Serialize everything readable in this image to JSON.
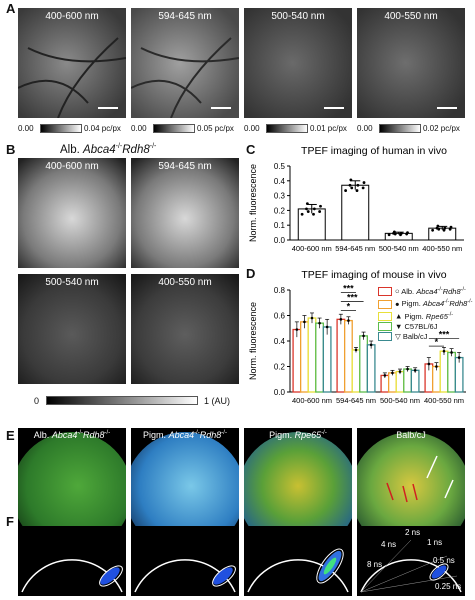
{
  "panels": {
    "A": {
      "label": "A",
      "images": [
        {
          "caption": "400-600 nm",
          "cb_min": "0.00",
          "cb_max": "0.04 pc/px"
        },
        {
          "caption": "594-645 nm",
          "cb_min": "0.00",
          "cb_max": "0.05 pc/px"
        },
        {
          "caption": "500-540 nm",
          "cb_min": "0.00",
          "cb_max": "0.01 pc/px"
        },
        {
          "caption": "400-550 nm",
          "cb_min": "0.00",
          "cb_max": "0.02 pc/px"
        }
      ]
    },
    "B": {
      "label": "B",
      "title_prefix": "Alb.",
      "title_genotype": "Abca4",
      "title_sup1": "-/-",
      "title_gene2": "Rdh8",
      "title_sup2": "-/-",
      "captions": [
        "400-600 nm",
        "594-645 nm",
        "500-540 nm",
        "400-550 nm"
      ],
      "cb_min": "0",
      "cb_max": "1 (AU)"
    },
    "C": {
      "label": "C"
    },
    "D": {
      "label": "D"
    },
    "E": {
      "label": "E",
      "captions": [
        {
          "pre": "Alb.",
          "g1": "Abca4",
          "s1": "-/-",
          "g2": "Rdh8",
          "s2": "-/-"
        },
        {
          "pre": "Pigm.",
          "g1": "Abca4",
          "s1": "-/-",
          "g2": "Rdh8",
          "s2": "-/-"
        },
        {
          "pre": "Pigm.",
          "g1": "Rpe65",
          "s1": "-/-",
          "g2": "",
          "s2": ""
        },
        {
          "pre": "Balb/cJ",
          "g1": "",
          "s1": "",
          "g2": "",
          "s2": ""
        }
      ]
    },
    "F": {
      "label": "F",
      "ns_labels": [
        "2 ns",
        "1 ns",
        "4 ns",
        "0.5 ns",
        "8 ns",
        "0.25 ns"
      ]
    }
  },
  "legend_D": [
    {
      "marker": "○",
      "name": "Alb. Abca4-/-Rdh8-/-",
      "pre": "Alb.",
      "g1": "Abca4",
      "s1": "-/-",
      "g2": "Rdh8",
      "s2": "-/-",
      "color": "#d9352b"
    },
    {
      "marker": "●",
      "name": "Pigm. Abca4-/-Rdh8-/-",
      "pre": "Pigm.",
      "g1": "Abca4",
      "s1": "-/-",
      "g2": "Rdh8",
      "s2": "-/-",
      "color": "#f0a030"
    },
    {
      "marker": "▲",
      "name": "Pigm. Rpe65-/-",
      "pre": "Pigm.",
      "g1": "Rpe65",
      "s1": "-/-",
      "g2": "",
      "s2": "",
      "color": "#e8e03a"
    },
    {
      "marker": "▼",
      "name": "C57BL/6J",
      "pre": "C57BL/6J",
      "g1": "",
      "s1": "",
      "g2": "",
      "s2": "",
      "color": "#5cbc4c"
    },
    {
      "marker": "▽",
      "name": "Balb/cJ",
      "pre": "Balb/cJ",
      "g1": "",
      "s1": "",
      "g2": "",
      "s2": "",
      "color": "#3a8a90"
    }
  ],
  "chart_data": [
    {
      "type": "bar",
      "title": "TPEF imaging of human in vivo",
      "ylabel": "Norm. fluorescence",
      "xlabel": "",
      "categories": [
        "400-600 nm",
        "594-645 nm",
        "500-540 nm",
        "400-550 nm"
      ],
      "values": [
        0.21,
        0.37,
        0.045,
        0.08
      ],
      "errors": [
        0.03,
        0.03,
        0.008,
        0.012
      ],
      "ylim": [
        0,
        0.5
      ],
      "yticks": [
        "0.0",
        "0.1",
        "0.2",
        "0.3",
        "0.4",
        "0.5"
      ],
      "bar_color": "#ffffff"
    },
    {
      "type": "bar",
      "title": "TPEF imaging of mouse in vivo",
      "ylabel": "Norm. fluorescence",
      "xlabel": "",
      "categories": [
        "400-600 nm",
        "594-645 nm",
        "500-540 nm",
        "400-550 nm"
      ],
      "ylim": [
        0,
        0.8
      ],
      "yticks": [
        "0.0",
        "0.2",
        "0.4",
        "0.6",
        "0.8"
      ],
      "series": [
        {
          "name": "Alb. Abca4-/-Rdh8-/-",
          "color": "#d9352b",
          "values": [
            0.49,
            0.57,
            0.13,
            0.22
          ],
          "errors": [
            0.06,
            0.04,
            0.02,
            0.05
          ]
        },
        {
          "name": "Pigm. Abca4-/-Rdh8-/-",
          "color": "#f0a030",
          "values": [
            0.55,
            0.56,
            0.15,
            0.2
          ],
          "errors": [
            0.05,
            0.03,
            0.02,
            0.03
          ]
        },
        {
          "name": "Pigm. Rpe65-/-",
          "color": "#e8e03a",
          "values": [
            0.58,
            0.33,
            0.16,
            0.32
          ],
          "errors": [
            0.04,
            0.02,
            0.02,
            0.03
          ]
        },
        {
          "name": "C57BL/6J",
          "color": "#5cbc4c",
          "values": [
            0.54,
            0.44,
            0.18,
            0.31
          ],
          "errors": [
            0.04,
            0.03,
            0.02,
            0.03
          ]
        },
        {
          "name": "Balb/cJ",
          "color": "#3a8a90",
          "values": [
            0.51,
            0.37,
            0.17,
            0.27
          ],
          "errors": [
            0.06,
            0.03,
            0.02,
            0.04
          ]
        }
      ],
      "annotations": [
        "***",
        "***",
        "*",
        "***",
        "*"
      ]
    }
  ]
}
